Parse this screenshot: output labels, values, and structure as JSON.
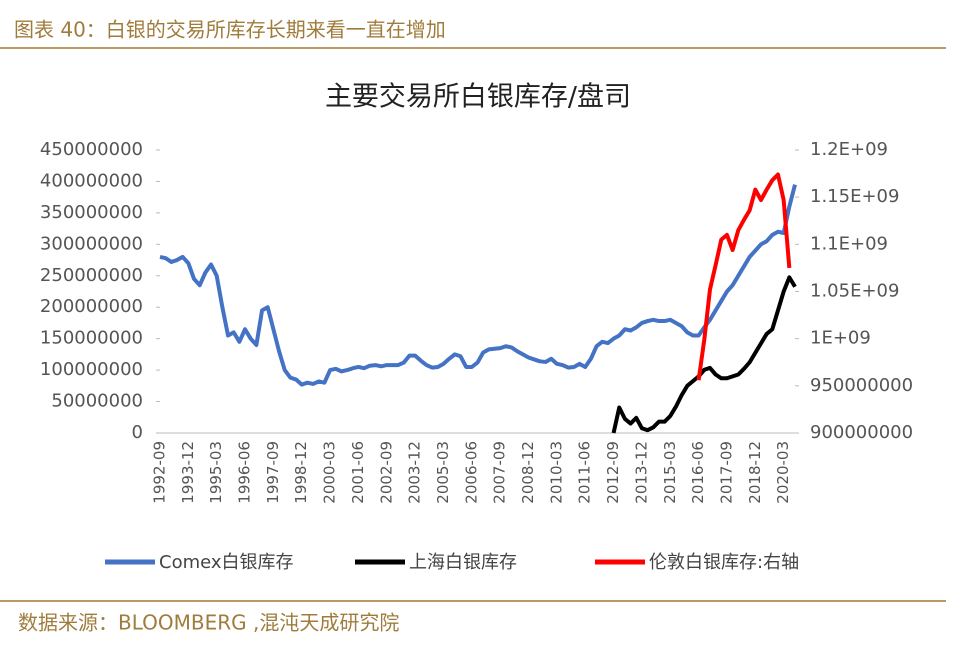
{
  "header": {
    "title": "图表 40：白银的交易所库存长期来看一直在增加"
  },
  "footer": {
    "source": "数据来源：BLOOMBERG ,混沌天成研究院"
  },
  "chart_data": {
    "type": "line",
    "title": "主要交易所白银库存/盘司",
    "categories": [
      "1992-09",
      null,
      null,
      null,
      null,
      "1993-12",
      null,
      null,
      null,
      null,
      "1995-03",
      null,
      null,
      null,
      null,
      "1996-06",
      null,
      null,
      null,
      null,
      "1997-09",
      null,
      null,
      null,
      null,
      "1998-12",
      null,
      null,
      null,
      null,
      "2000-03",
      null,
      null,
      null,
      null,
      "2001-06",
      null,
      null,
      null,
      null,
      "2002-09",
      null,
      null,
      null,
      null,
      "2003-12",
      null,
      null,
      null,
      null,
      "2005-03",
      null,
      null,
      null,
      null,
      "2006-06",
      null,
      null,
      null,
      null,
      "2007-09",
      null,
      null,
      null,
      null,
      "2008-12",
      null,
      null,
      null,
      null,
      "2010-03",
      null,
      null,
      null,
      null,
      "2011-06",
      null,
      null,
      null,
      null,
      "2012-09",
      null,
      null,
      null,
      null,
      "2013-12",
      null,
      null,
      null,
      null,
      "2015-03",
      null,
      null,
      null,
      null,
      "2016-06",
      null,
      null,
      null,
      null,
      "2017-09",
      null,
      null,
      null,
      null,
      "2018-12",
      null,
      null,
      null,
      null,
      "2020-03",
      null,
      null
    ],
    "series": [
      {
        "name": "Comex白银库存",
        "color": "#4472c4",
        "axis": "y",
        "values": [
          280000000,
          278000000,
          272000000,
          275000000,
          280000000,
          270000000,
          245000000,
          235000000,
          255000000,
          268000000,
          250000000,
          200000000,
          155000000,
          160000000,
          145000000,
          165000000,
          150000000,
          140000000,
          195000000,
          200000000,
          165000000,
          130000000,
          100000000,
          88000000,
          85000000,
          77000000,
          80000000,
          78000000,
          82000000,
          80000000,
          100000000,
          102000000,
          98000000,
          100000000,
          103000000,
          105000000,
          103000000,
          107000000,
          108000000,
          106000000,
          108000000,
          108000000,
          108000000,
          112000000,
          123000000,
          123000000,
          115000000,
          108000000,
          104000000,
          105000000,
          110000000,
          118000000,
          125000000,
          122000000,
          105000000,
          105000000,
          112000000,
          128000000,
          133000000,
          134000000,
          135000000,
          138000000,
          136000000,
          130000000,
          125000000,
          120000000,
          117000000,
          114000000,
          113000000,
          118000000,
          110000000,
          108000000,
          104000000,
          105000000,
          110000000,
          105000000,
          118000000,
          138000000,
          145000000,
          143000000,
          150000000,
          155000000,
          165000000,
          163000000,
          168000000,
          175000000,
          178000000,
          180000000,
          178000000,
          178000000,
          180000000,
          175000000,
          170000000,
          160000000,
          155000000,
          155000000,
          168000000,
          180000000,
          195000000,
          210000000,
          225000000,
          235000000,
          250000000,
          265000000,
          280000000,
          290000000,
          300000000,
          305000000,
          315000000,
          320000000,
          318000000,
          360000000,
          395000000
        ]
      },
      {
        "name": "上海白银库存",
        "color": "#000000",
        "axis": "y2",
        "values": [
          null,
          null,
          null,
          null,
          null,
          null,
          null,
          null,
          null,
          null,
          null,
          null,
          null,
          null,
          null,
          null,
          null,
          null,
          null,
          null,
          null,
          null,
          null,
          null,
          null,
          null,
          null,
          null,
          null,
          null,
          null,
          null,
          null,
          null,
          null,
          null,
          null,
          null,
          null,
          null,
          null,
          null,
          null,
          null,
          null,
          null,
          null,
          null,
          null,
          null,
          null,
          null,
          null,
          null,
          null,
          null,
          null,
          null,
          null,
          null,
          null,
          null,
          null,
          null,
          null,
          null,
          null,
          null,
          null,
          null,
          null,
          null,
          null,
          null,
          null,
          null,
          null,
          null,
          null,
          null,
          900000000,
          927000000,
          915000000,
          910000000,
          916000000,
          905000000,
          903000000,
          906000000,
          912000000,
          912000000,
          918000000,
          928000000,
          940000000,
          950000000,
          955000000,
          960000000,
          967000000,
          969000000,
          962000000,
          958000000,
          958000000,
          960000000,
          962000000,
          968000000,
          975000000,
          985000000,
          995000000,
          1005000000,
          1010000000,
          1030000000,
          1050000000,
          1065000000,
          1055000000
        ]
      },
      {
        "name": "伦敦白银库存:右轴",
        "color": "#ff0000",
        "axis": "y2",
        "values": [
          null,
          null,
          null,
          null,
          null,
          null,
          null,
          null,
          null,
          null,
          null,
          null,
          null,
          null,
          null,
          null,
          null,
          null,
          null,
          null,
          null,
          null,
          null,
          null,
          null,
          null,
          null,
          null,
          null,
          null,
          null,
          null,
          null,
          null,
          null,
          null,
          null,
          null,
          null,
          null,
          null,
          null,
          null,
          null,
          null,
          null,
          null,
          null,
          null,
          null,
          null,
          null,
          null,
          null,
          null,
          null,
          null,
          null,
          null,
          null,
          null,
          null,
          null,
          null,
          null,
          null,
          null,
          null,
          null,
          null,
          null,
          null,
          null,
          null,
          null,
          null,
          null,
          null,
          null,
          null,
          null,
          null,
          null,
          null,
          null,
          null,
          null,
          null,
          null,
          null,
          null,
          null,
          null,
          null,
          null,
          956000000,
          999000000,
          1052000000,
          1078000000,
          1105000000,
          1110000000,
          1094000000,
          1115000000,
          1126000000,
          1136000000,
          1158000000,
          1147000000,
          1158000000,
          1168000000,
          1174000000,
          1147000000,
          1075000000,
          null
        ]
      }
    ],
    "ylim": [
      0,
      450000000
    ],
    "yticks": [
      0,
      50000000,
      100000000,
      150000000,
      200000000,
      250000000,
      300000000,
      350000000,
      400000000,
      450000000
    ],
    "y2lim": [
      900000000,
      1200000000
    ],
    "y2ticks": [
      900000000,
      950000000,
      {
        "value": 1000000000,
        "label": "1E+09"
      },
      {
        "value": 1050000000,
        "label": "1.05E+09"
      },
      {
        "value": 1100000000,
        "label": "1.1E+09"
      },
      {
        "value": 1150000000,
        "label": "1.15E+09"
      },
      {
        "value": 1200000000,
        "label": "1.2E+09"
      }
    ],
    "grid": false,
    "legend": "bottom"
  }
}
